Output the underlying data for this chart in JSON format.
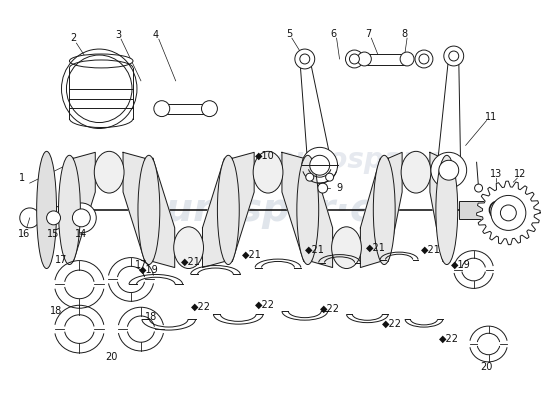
{
  "background_color": "#ffffff",
  "line_color": "#1a1a1a",
  "label_color": "#111111",
  "watermark_color": "#c8d0dc",
  "fig_w": 5.5,
  "fig_h": 4.0,
  "dpi": 100
}
